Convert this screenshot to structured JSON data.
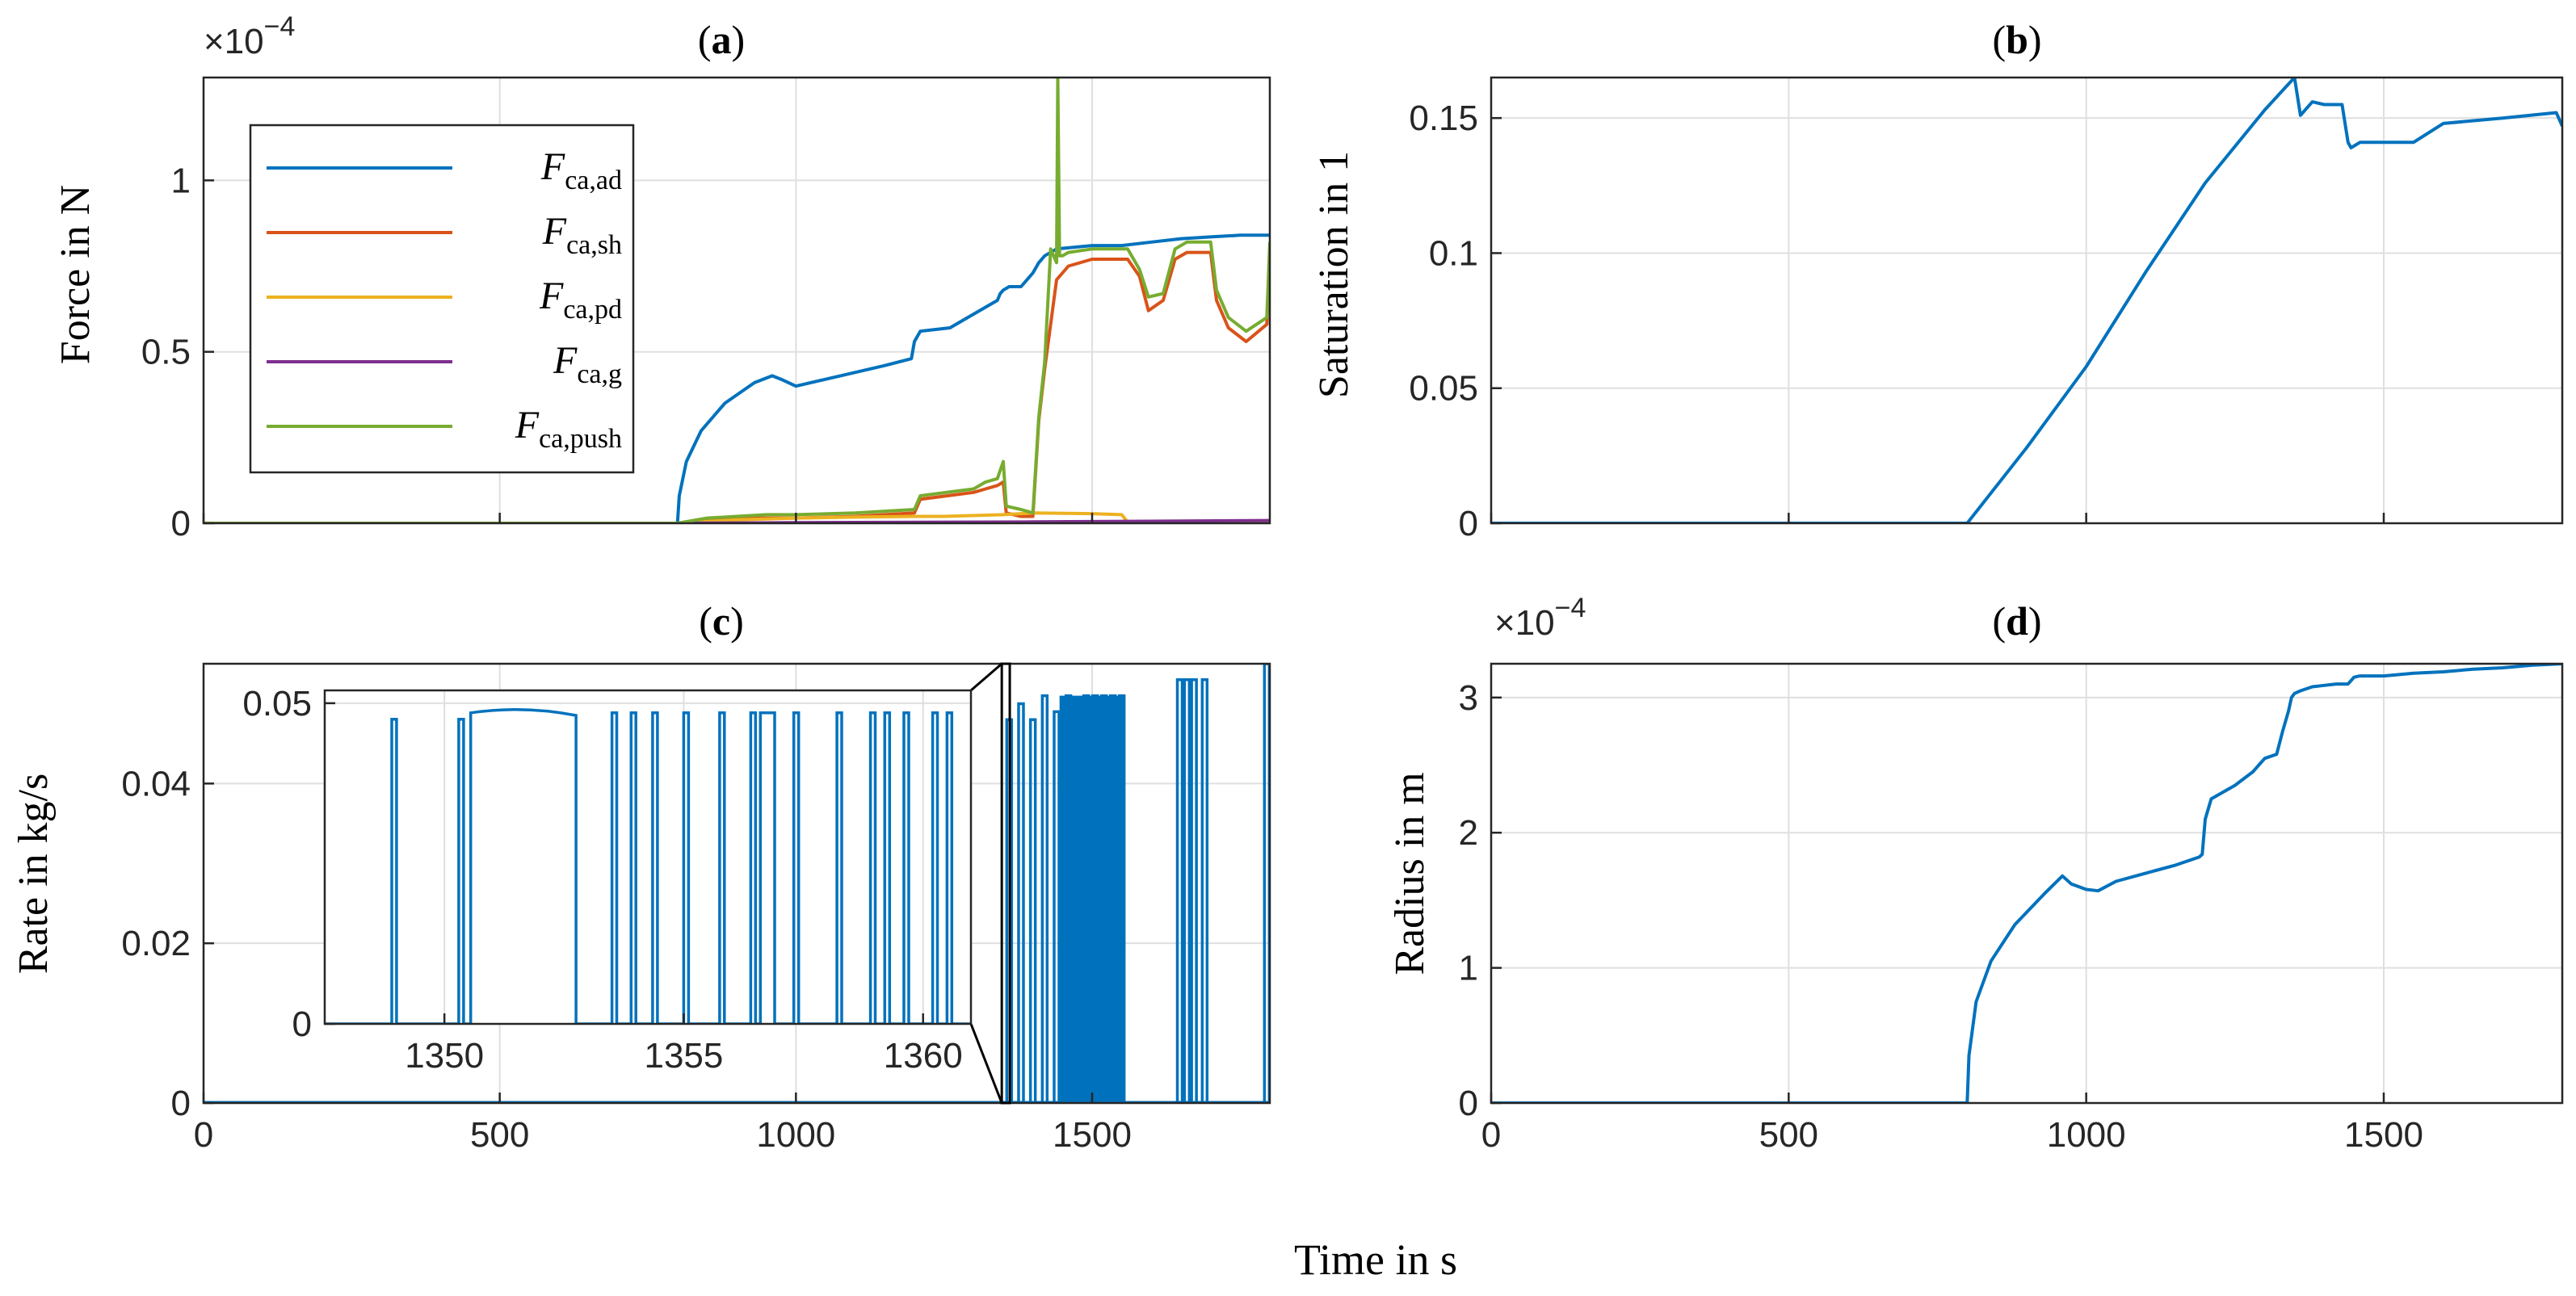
{
  "figure": {
    "xlabel": "Time in s",
    "colors": {
      "blue": "#0072BD",
      "orange": "#D95319",
      "yellow": "#EDB120",
      "purple": "#7E2F8E",
      "green": "#77AC30"
    }
  },
  "chart_data": [
    {
      "id": "a",
      "type": "line",
      "panel_label": "a",
      "ylabel": "Force in N",
      "multiplier": "×10",
      "multiplier_exp": "−4",
      "xlim": [
        0,
        1800
      ],
      "ylim": [
        0,
        1.3
      ],
      "x_ticks": [
        0,
        500,
        1000,
        1500
      ],
      "x_tick_labels": [],
      "y_ticks": [
        0,
        0.5,
        1
      ],
      "y_tick_labels": [
        "0",
        "0.5",
        "1"
      ],
      "legend_position": "top-left",
      "series": [
        {
          "name": "F",
          "sub": "ca,ad",
          "color": "#0072BD",
          "x": [
            0,
            800,
            803,
            815,
            840,
            880,
            930,
            960,
            975,
            1000,
            1050,
            1100,
            1150,
            1195,
            1200,
            1210,
            1260,
            1300,
            1320,
            1340,
            1345,
            1350,
            1360,
            1380,
            1400,
            1410,
            1420,
            1440,
            1500,
            1550,
            1600,
            1650,
            1700,
            1750,
            1800
          ],
          "y": [
            0,
            0,
            0.08,
            0.18,
            0.27,
            0.35,
            0.41,
            0.43,
            0.42,
            0.4,
            0.42,
            0.44,
            0.46,
            0.48,
            0.53,
            0.56,
            0.57,
            0.61,
            0.63,
            0.65,
            0.67,
            0.68,
            0.69,
            0.69,
            0.73,
            0.76,
            0.78,
            0.8,
            0.81,
            0.81,
            0.82,
            0.83,
            0.835,
            0.84,
            0.84
          ]
        },
        {
          "name": "F",
          "sub": "ca,sh",
          "color": "#D95319",
          "x": [
            0,
            800,
            850,
            900,
            950,
            1000,
            1100,
            1200,
            1210,
            1300,
            1320,
            1340,
            1350,
            1355,
            1380,
            1400,
            1410,
            1420,
            1440,
            1460,
            1500,
            1560,
            1580,
            1595,
            1620,
            1640,
            1660,
            1700,
            1710,
            1730,
            1760,
            1795,
            1800
          ],
          "y": [
            0,
            0,
            0.01,
            0.015,
            0.015,
            0.015,
            0.02,
            0.03,
            0.07,
            0.09,
            0.1,
            0.11,
            0.12,
            0.03,
            0.02,
            0.02,
            0.3,
            0.45,
            0.71,
            0.75,
            0.77,
            0.77,
            0.72,
            0.62,
            0.65,
            0.77,
            0.79,
            0.79,
            0.65,
            0.57,
            0.53,
            0.58,
            0.79
          ]
        },
        {
          "name": "F",
          "sub": "ca,pd",
          "color": "#EDB120",
          "x": [
            0,
            800,
            900,
            1000,
            1100,
            1200,
            1250,
            1350,
            1400,
            1500,
            1550,
            1560,
            1800
          ],
          "y": [
            0,
            0,
            0.01,
            0.015,
            0.018,
            0.02,
            0.02,
            0.025,
            0.03,
            0.028,
            0.025,
            0.003,
            0.002
          ]
        },
        {
          "name": "F",
          "sub": "ca,g",
          "color": "#7E2F8E",
          "x": [
            0,
            800,
            1000,
            1400,
            1600,
            1800
          ],
          "y": [
            0,
            0,
            0.002,
            0.004,
            0.006,
            0.008
          ]
        },
        {
          "name": "F",
          "sub": "ca,push",
          "color": "#77AC30",
          "x": [
            0,
            800,
            850,
            900,
            950,
            1000,
            1100,
            1200,
            1210,
            1300,
            1320,
            1340,
            1350,
            1355,
            1380,
            1400,
            1410,
            1420,
            1430,
            1440,
            1442,
            1445,
            1450,
            1460,
            1500,
            1560,
            1580,
            1595,
            1620,
            1640,
            1660,
            1700,
            1710,
            1730,
            1760,
            1795,
            1800
          ],
          "y": [
            0,
            0,
            0.015,
            0.02,
            0.025,
            0.025,
            0.03,
            0.04,
            0.08,
            0.1,
            0.12,
            0.13,
            0.18,
            0.05,
            0.04,
            0.03,
            0.31,
            0.47,
            0.8,
            0.76,
            1.3,
            0.78,
            0.78,
            0.79,
            0.8,
            0.8,
            0.74,
            0.66,
            0.67,
            0.8,
            0.82,
            0.82,
            0.68,
            0.6,
            0.56,
            0.6,
            0.82
          ]
        }
      ]
    },
    {
      "id": "b",
      "type": "line",
      "panel_label": "b",
      "ylabel": "Saturation in 1",
      "xlim": [
        0,
        1800
      ],
      "ylim": [
        0,
        0.165
      ],
      "x_ticks": [
        0,
        500,
        1000,
        1500
      ],
      "x_tick_labels": [],
      "y_ticks": [
        0,
        0.05,
        0.1,
        0.15
      ],
      "y_tick_labels": [
        "0",
        "0.05",
        "0.1",
        "0.15"
      ],
      "series": [
        {
          "name": "Saturation",
          "color": "#0072BD",
          "x": [
            0,
            800,
            900,
            1000,
            1100,
            1200,
            1300,
            1350,
            1360,
            1380,
            1400,
            1430,
            1440,
            1445,
            1460,
            1500,
            1550,
            1600,
            1700,
            1790,
            1800
          ],
          "y": [
            0,
            0,
            0.028,
            0.058,
            0.093,
            0.126,
            0.153,
            0.165,
            0.151,
            0.156,
            0.155,
            0.155,
            0.141,
            0.139,
            0.141,
            0.141,
            0.141,
            0.148,
            0.15,
            0.152,
            0.147
          ]
        }
      ]
    },
    {
      "id": "c",
      "type": "line",
      "panel_label": "c",
      "ylabel": "Rate in kg/s",
      "xlim": [
        0,
        1800
      ],
      "ylim": [
        0,
        0.055
      ],
      "x_ticks": [
        0,
        500,
        1000,
        1500
      ],
      "x_tick_labels": [
        "0",
        "500",
        "1000",
        "1500"
      ],
      "y_ticks": [
        0,
        0.02,
        0.04
      ],
      "y_tick_labels": [
        "0",
        "0.02",
        "0.04"
      ],
      "series": [
        {
          "name": "Rate",
          "color": "#0072BD",
          "pulses": [
            [
              1360,
              0.048
            ],
            [
              1380,
              0.05
            ],
            [
              1400,
              0.048
            ],
            [
              1420,
              0.051
            ],
            [
              1440,
              0.049
            ],
            [
              1460,
              0.051
            ],
            [
              1475,
              0.05
            ],
            [
              1490,
              0.051
            ],
            [
              1505,
              0.051
            ],
            [
              1520,
              0.051
            ],
            [
              1535,
              0.051
            ],
            [
              1550,
              0.051
            ],
            [
              1648,
              0.053
            ],
            [
              1660,
              0.053
            ],
            [
              1672,
              0.053
            ],
            [
              1690,
              0.053
            ],
            [
              1795,
              0.055
            ]
          ],
          "dense_band": {
            "x": [
              1445,
              1555
            ],
            "y": 0.051
          }
        }
      ],
      "inset": {
        "xlim": [
          1347.5,
          1361
        ],
        "ylim": [
          0,
          0.052
        ],
        "x_ticks": [
          1350,
          1355,
          1360
        ],
        "x_tick_labels": [
          "1350",
          "1355",
          "1360"
        ],
        "y_ticks": [
          0,
          0.05
        ],
        "y_tick_labels": [
          "0",
          "0.05"
        ],
        "zoom_region_x": [
          1347.5,
          1361
        ],
        "pulses": [
          [
            1348.9,
            1349.0,
            0.0475
          ],
          [
            1350.3,
            1350.4,
            0.0475
          ],
          [
            1350.55,
            1352.75,
            0.0485
          ],
          [
            1353.5,
            1353.6,
            0.0485
          ],
          [
            1353.9,
            1354.0,
            0.0485
          ],
          [
            1354.35,
            1354.45,
            0.0485
          ],
          [
            1355.0,
            1355.1,
            0.0485
          ],
          [
            1355.75,
            1355.85,
            0.0485
          ],
          [
            1356.4,
            1356.5,
            0.0485
          ],
          [
            1356.6,
            1356.9,
            0.0485
          ],
          [
            1357.3,
            1357.4,
            0.0485
          ],
          [
            1358.2,
            1358.3,
            0.0485
          ],
          [
            1358.9,
            1359.0,
            0.0485
          ],
          [
            1359.2,
            1359.3,
            0.0485
          ],
          [
            1359.6,
            1359.7,
            0.0485
          ],
          [
            1360.2,
            1360.3,
            0.0485
          ],
          [
            1360.5,
            1360.6,
            0.0485
          ]
        ]
      }
    },
    {
      "id": "d",
      "type": "line",
      "panel_label": "d",
      "ylabel": "Radius in m",
      "multiplier": "×10",
      "multiplier_exp": "−4",
      "xlim": [
        0,
        1800
      ],
      "ylim": [
        0,
        3.25
      ],
      "x_ticks": [
        0,
        500,
        1000,
        1500
      ],
      "x_tick_labels": [
        "0",
        "500",
        "1000",
        "1500"
      ],
      "y_ticks": [
        0,
        1,
        2,
        3
      ],
      "y_tick_labels": [
        "0",
        "1",
        "2",
        "3"
      ],
      "series": [
        {
          "name": "Radius",
          "color": "#0072BD",
          "x": [
            0,
            800,
            803,
            815,
            840,
            880,
            930,
            960,
            975,
            1000,
            1020,
            1050,
            1100,
            1150,
            1190,
            1195,
            1200,
            1210,
            1250,
            1280,
            1290,
            1300,
            1320,
            1330,
            1340,
            1345,
            1350,
            1360,
            1380,
            1400,
            1420,
            1440,
            1450,
            1460,
            1500,
            1550,
            1600,
            1650,
            1700,
            1750,
            1800
          ],
          "y": [
            0,
            0,
            0.35,
            0.75,
            1.05,
            1.32,
            1.55,
            1.68,
            1.62,
            1.58,
            1.57,
            1.64,
            1.7,
            1.76,
            1.82,
            1.84,
            2.1,
            2.25,
            2.35,
            2.45,
            2.5,
            2.55,
            2.58,
            2.75,
            2.9,
            3.0,
            3.03,
            3.05,
            3.08,
            3.09,
            3.1,
            3.1,
            3.15,
            3.16,
            3.16,
            3.18,
            3.19,
            3.21,
            3.22,
            3.24,
            3.25
          ]
        }
      ]
    }
  ]
}
